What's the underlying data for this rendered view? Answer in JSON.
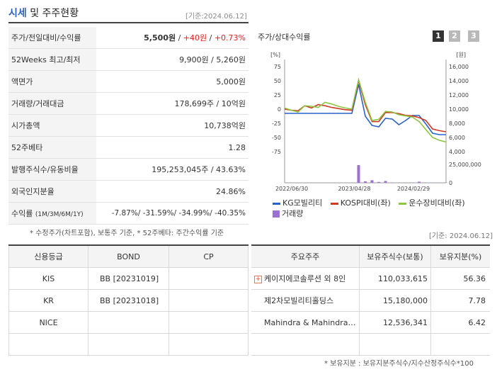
{
  "header": {
    "title_main": "시세",
    "title_rest": "및 주주현황",
    "base_date": "[기준:2024.06.12]"
  },
  "quote_rows": [
    {
      "label": "주가/전일대비/수익률",
      "value": "5,500원",
      "sep1": " / ",
      "change": "+40원",
      "sep2": " / ",
      "rate": "+0.73%"
    },
    {
      "label": "52Weeks 최고/최저",
      "value": "9,900원 / 5,260원"
    },
    {
      "label": "액면가",
      "value": "5,000원"
    },
    {
      "label": "거래량/거래대금",
      "value": "178,699주 / 10억원"
    },
    {
      "label": "시가총액",
      "value": "10,738억원"
    },
    {
      "label": "52주베타",
      "value": "1.28"
    },
    {
      "label": "발행주식수/유동비율",
      "value": "195,253,045주 / 43.63%"
    },
    {
      "label": "외국인지분율",
      "value": "24.86%"
    }
  ],
  "return_row": {
    "label": "수익률",
    "label_sub": "(1M/3M/6M/1Y)",
    "v1": "-7.87%",
    "v2": "-31.59%",
    "v3": "-34.99%",
    "v4": "-40.35%"
  },
  "quote_note": "* 수정주가(차트포함), 보통주 기준, * 52주베타: 주간수익률 기준",
  "chart": {
    "title": "주가/상대수익률",
    "tabs": [
      "1",
      "2",
      "3"
    ],
    "active_tab": "1",
    "left_unit": "[%]",
    "right_unit": "[원]",
    "legend": {
      "kg": "KG모빌리티",
      "kospi": "KOSPI대비(좌)",
      "industry": "운수장비대비(좌)",
      "volume": "거래량"
    },
    "colors": {
      "kg": "#2a62c8",
      "kospi": "#cc3a24",
      "industry": "#8cc63f",
      "volume": "#9b72cf"
    }
  },
  "chart_data": {
    "type": "line",
    "x_labels": [
      "2022/06/30",
      "2023/04/28",
      "2024/02/29"
    ],
    "left_axis": {
      "ticks": [
        75,
        50,
        25,
        0,
        -25,
        -50,
        -75
      ],
      "range": [
        -75,
        75
      ]
    },
    "right_axis": {
      "ticks": [
        "16,000",
        "14,000",
        "12,000",
        "10,000",
        "8,000",
        "6,000",
        "4,000"
      ],
      "range": [
        4000,
        16000
      ]
    },
    "volume_axis": {
      "ticks": [
        "25,000,000",
        "0"
      ],
      "range": [
        0,
        25000000
      ]
    },
    "series": [
      {
        "name": "KG모빌리티",
        "key": "kg",
        "axis": "right",
        "values": [
          9400,
          9400,
          9400,
          9400,
          9400,
          9400,
          9400,
          9400,
          9400,
          9400,
          9400,
          13500,
          9000,
          7700,
          7500,
          8700,
          8600,
          7800,
          8400,
          9100,
          9100,
          7900,
          6600,
          6400,
          6400
        ]
      },
      {
        "name": "KOSPI대비(좌)",
        "key": "kospi",
        "axis": "left",
        "values": [
          0,
          -2,
          -3,
          6,
          2,
          8,
          6,
          3,
          1,
          -1,
          -2,
          50,
          8,
          -22,
          -22,
          -6,
          -6,
          -8,
          -11,
          -12,
          -15,
          -20,
          -35,
          -38,
          -40
        ]
      },
      {
        "name": "운수장비대비(좌)",
        "key": "industry",
        "axis": "left",
        "values": [
          2,
          -2,
          -5,
          6,
          5,
          3,
          12,
          9,
          5,
          2,
          0,
          52,
          12,
          -20,
          -18,
          -4,
          -5,
          -10,
          -12,
          -14,
          -22,
          -36,
          -50,
          -55,
          -58
        ]
      }
    ],
    "volume": [
      0,
      0,
      0,
      0,
      0,
      0,
      0,
      0,
      0,
      0,
      0,
      24000000,
      2000000,
      3500000,
      1200000,
      2500000,
      500000,
      300000,
      300000,
      200000,
      1500000,
      400000,
      300000,
      300000,
      300000
    ]
  },
  "chart_note": "[기준: 2024.06.12]",
  "credit": {
    "headers": [
      "신용등급",
      "BOND",
      "CP"
    ],
    "rows": [
      {
        "agency": "KIS",
        "bond": "BB [20231019]",
        "cp": ""
      },
      {
        "agency": "KR",
        "bond": "BB [20231018]",
        "cp": ""
      },
      {
        "agency": "NICE",
        "bond": "",
        "cp": ""
      },
      {
        "agency": "",
        "bond": "",
        "cp": ""
      }
    ]
  },
  "shareholders": {
    "headers": [
      "주요주주",
      "보유주식수(보통)",
      "보유지분(%)"
    ],
    "rows": [
      {
        "name": "케이지에코솔루션 외 8인",
        "shares": "110,033,615",
        "pct": "56.36",
        "expand": true
      },
      {
        "name": "제2차모빌리티홀딩스",
        "shares": "15,180,000",
        "pct": "7.78",
        "expand": false
      },
      {
        "name": "Mahindra & Mahindra…",
        "shares": "12,536,341",
        "pct": "6.42",
        "expand": false
      }
    ],
    "note": "* 보유지분 : 보유지분주식수/지수산정주식수*100"
  }
}
